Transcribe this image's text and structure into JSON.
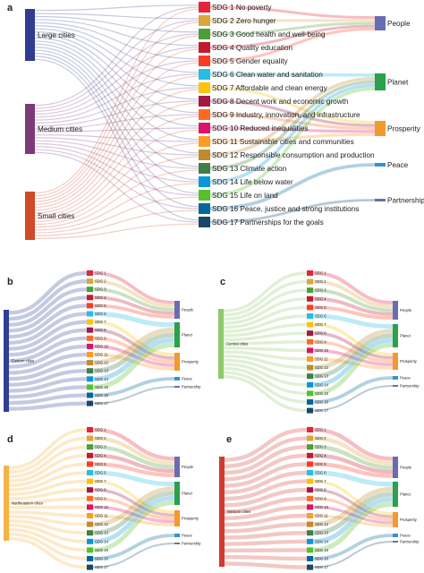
{
  "colors": {
    "large": "#2f3c8f",
    "medium": "#7c3a79",
    "small": "#cd4b28",
    "eastern": "#2e3f94",
    "central": "#8fc96a",
    "northeastern": "#f4b343",
    "western": "#d23a2f",
    "people": "#6a6cb3",
    "planet": "#2aa14a",
    "prosperity": "#f29a2e",
    "peace": "#3a8fd0",
    "partnership": "#6b6fa8"
  },
  "sdgs": [
    {
      "label": "SDG 1 No poverty",
      "short": "SDG 1",
      "color": "#e5243b",
      "pillar": "people"
    },
    {
      "label": "SDG 2 Zero hunger",
      "short": "SDG 2",
      "color": "#dda63a",
      "pillar": "people"
    },
    {
      "label": "SDG 3 Good health and well-being",
      "short": "SDG 3",
      "color": "#4c9f38",
      "pillar": "people"
    },
    {
      "label": "SDG 4 Quality education",
      "short": "SDG 4",
      "color": "#c5192d",
      "pillar": "people"
    },
    {
      "label": "SDG 5 Gender equality",
      "short": "SDG 5",
      "color": "#ff3a21",
      "pillar": "people"
    },
    {
      "label": "SDG 6 Clean water and sanitation",
      "short": "SDG 6",
      "color": "#26bde2",
      "pillar": "planet"
    },
    {
      "label": "SDG 7 Affordable and clean energy",
      "short": "SDG 7",
      "color": "#fcc30b",
      "pillar": "prosperity"
    },
    {
      "label": "SDG 8 Decent work and economic growth",
      "short": "SDG 8",
      "color": "#a21942",
      "pillar": "prosperity"
    },
    {
      "label": "SDG 9 Industry, innovation, and infrastructure",
      "short": "SDG 9",
      "color": "#fd6925",
      "pillar": "prosperity"
    },
    {
      "label": "SDG 10 Reduced inequalities",
      "short": "SDG 10",
      "color": "#dd1367",
      "pillar": "prosperity"
    },
    {
      "label": "SDG 11 Sustainable cities and communities",
      "short": "SDG 11",
      "color": "#fd9d24",
      "pillar": "prosperity"
    },
    {
      "label": "SDG 12 Responsible consumption and production",
      "short": "SDG 12",
      "color": "#bf8b2e",
      "pillar": "planet"
    },
    {
      "label": "SDG 13 Climate action",
      "short": "SDG 13",
      "color": "#3f7e44",
      "pillar": "planet"
    },
    {
      "label": "SDG 14 Life below water",
      "short": "SDG 14",
      "color": "#0a97d9",
      "pillar": "planet"
    },
    {
      "label": "SDG 15 Life on land",
      "short": "SDG 15",
      "color": "#56c02b",
      "pillar": "planet"
    },
    {
      "label": "SDG 16 Peace, justice and strong institutions",
      "short": "SDG 16",
      "color": "#00689d",
      "pillar": "peace"
    },
    {
      "label": "SDG 17 Partnerships for the goals",
      "short": "SDG 17",
      "color": "#19486a",
      "pillar": "partnership"
    }
  ],
  "pillars": [
    {
      "key": "people",
      "label": "People"
    },
    {
      "key": "planet",
      "label": "Planet"
    },
    {
      "key": "prosperity",
      "label": "Prosperity"
    },
    {
      "key": "peace",
      "label": "Peace"
    },
    {
      "key": "partnership",
      "label": "Partnership"
    }
  ],
  "panels": [
    {
      "letter": "a",
      "sources": [
        {
          "label": "Large cities",
          "colorKey": "large"
        },
        {
          "label": "Medium cities",
          "colorKey": "medium"
        },
        {
          "label": "Small cities",
          "colorKey": "small"
        }
      ]
    },
    {
      "letter": "b",
      "sources": [
        {
          "label": "Eastern cities",
          "colorKey": "eastern"
        }
      ]
    },
    {
      "letter": "c",
      "sources": [
        {
          "label": "Central cities",
          "colorKey": "central"
        }
      ]
    },
    {
      "letter": "d",
      "sources": [
        {
          "label": "Northeastern cities",
          "colorKey": "northeastern"
        }
      ]
    },
    {
      "letter": "e",
      "sources": [
        {
          "label": "Western cities",
          "colorKey": "western"
        }
      ]
    }
  ]
}
